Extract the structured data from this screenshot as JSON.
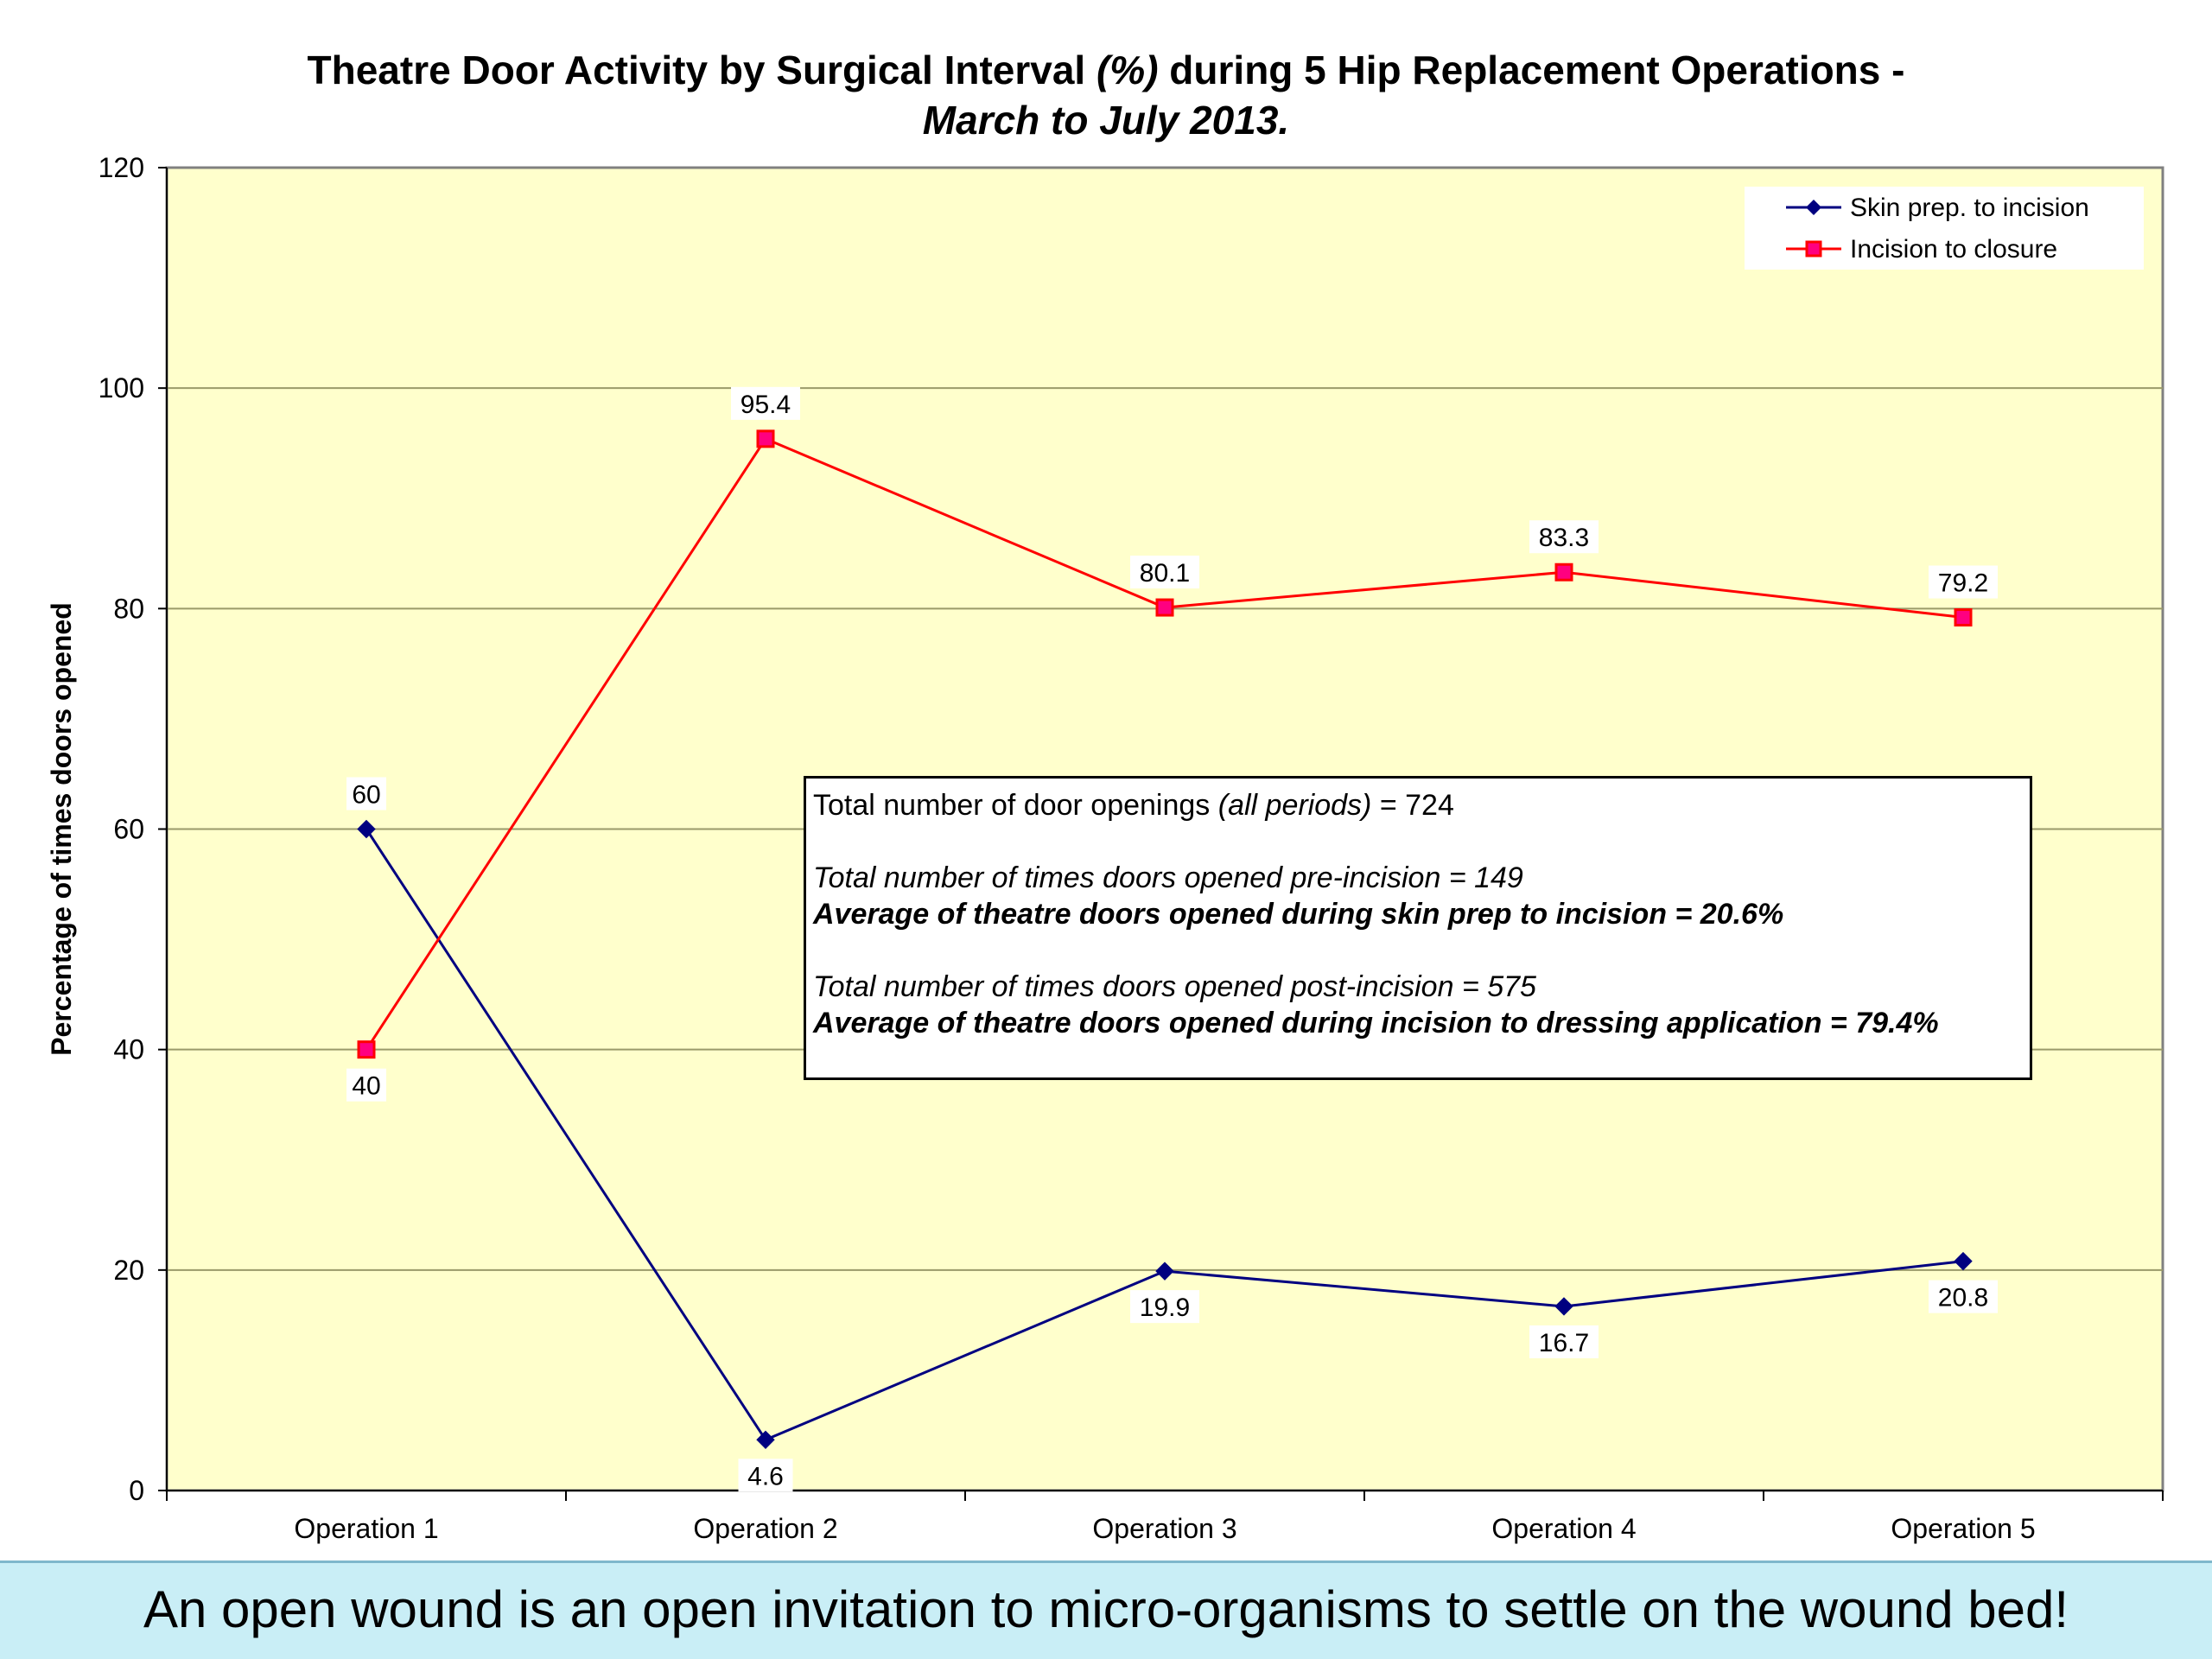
{
  "title": {
    "part1": "Theatre Door Activity by Surgical Interval ",
    "part2_italic": "(%)",
    "part3": " during 5 Hip Replacement Operations -",
    "line2_italic": "March to July 2013."
  },
  "chart_data": {
    "type": "line",
    "categories": [
      "Operation 1",
      "Operation 2",
      "Operation 3",
      "Operation 4",
      "Operation 5"
    ],
    "series": [
      {
        "name": "Skin prep. to incision",
        "values": [
          60,
          4.6,
          19.9,
          16.7,
          20.8
        ],
        "labels": [
          "60",
          "4.6",
          "19.9",
          "16.7",
          "20.8"
        ],
        "color": "#000080",
        "marker": "diamond"
      },
      {
        "name": "Incision to closure",
        "values": [
          40,
          95.4,
          80.1,
          83.3,
          79.2
        ],
        "labels": [
          "40",
          "95.4",
          "80.1",
          "83.3",
          "79.2"
        ],
        "color": "#ff0000",
        "marker": "square",
        "marker_fill": "#ff0080"
      }
    ],
    "ylabel": "Percentage of times doors opened",
    "xlabel": "",
    "ylim": [
      0,
      120
    ],
    "yticks": [
      "0",
      "20",
      "40",
      "60",
      "80",
      "100",
      "120"
    ],
    "grid": true,
    "legend_position": "top-right",
    "plot_background": "#ffffcc"
  },
  "stats_box": {
    "line1_a": "Total number of door openings ",
    "line1_b_italic": "(all periods)",
    "line1_c": " = 724",
    "line2": "Total number of times doors opened pre-incision = 149",
    "line3": "Average of theatre doors opened during skin prep to incision = 20.6%",
    "line4": "Total number of times doors opened post-incision = 575",
    "line5": "Average of theatre doors opened during incision to dressing application = 79.4%"
  },
  "caption": "An open wound is an open invitation to micro-organisms to settle on the wound bed!"
}
